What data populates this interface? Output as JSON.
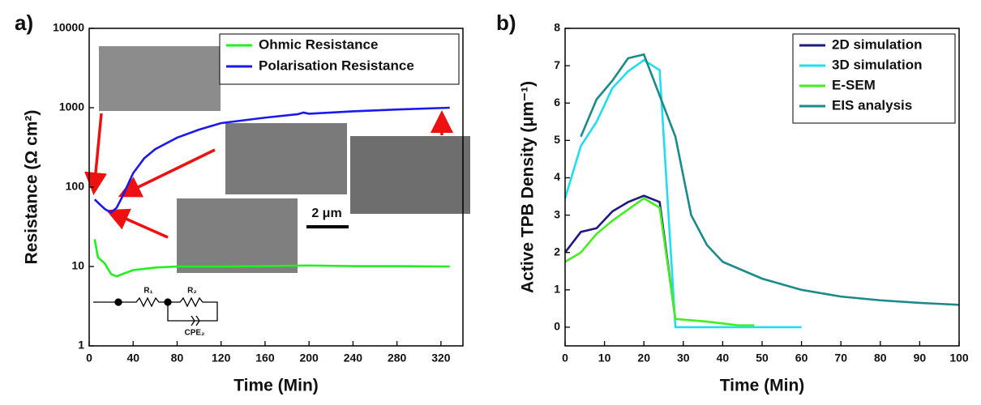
{
  "chart_data": [
    {
      "type": "line",
      "panel_label": "a)",
      "x_label": "Time (Min)",
      "y_label": "Resistance (Ω cm²)",
      "log_y": true,
      "xlim": [
        0,
        340
      ],
      "xticks": [
        0,
        40,
        80,
        120,
        160,
        200,
        240,
        280,
        320
      ],
      "ylim": [
        1,
        10000
      ],
      "yticks": [
        1,
        10,
        100,
        1000,
        10000
      ],
      "legend": "upper right",
      "series": [
        {
          "name": "Ohmic Resistance",
          "color": "#22ee22",
          "x": [
            5,
            8,
            14,
            20,
            25,
            30,
            40,
            60,
            80,
            120,
            160,
            200,
            240,
            280,
            328
          ],
          "values": [
            22,
            13,
            11,
            8,
            7.5,
            8,
            9,
            9.7,
            10,
            10,
            10.1,
            10.3,
            10.1,
            10.1,
            10
          ]
        },
        {
          "name": "Polarisation Resistance",
          "color": "#1a1aee",
          "x": [
            5,
            10,
            15,
            20,
            25,
            30,
            40,
            50,
            60,
            80,
            100,
            120,
            160,
            190,
            195,
            200,
            240,
            280,
            328
          ],
          "values": [
            70,
            60,
            52,
            48,
            55,
            75,
            150,
            230,
            300,
            420,
            530,
            640,
            750,
            830,
            870,
            840,
            900,
            950,
            1000
          ]
        }
      ],
      "annotations": {
        "scale_bar": "2 μm",
        "circuit": [
          "R₁",
          "R₂",
          "CPE₂"
        ]
      }
    },
    {
      "type": "line",
      "panel_label": "b)",
      "x_label": "Time (Min)",
      "y_label": "Active TPB Density (μm⁻¹)",
      "xlim": [
        0,
        100
      ],
      "xticks": [
        0,
        10,
        20,
        30,
        40,
        50,
        60,
        70,
        80,
        90,
        100
      ],
      "ylim": [
        -0.5,
        8
      ],
      "yticks": [
        0,
        1,
        2,
        3,
        4,
        5,
        6,
        7,
        8
      ],
      "legend": "upper right",
      "series": [
        {
          "name": "2D simulation",
          "color": "#1f1a80",
          "x": [
            0,
            4,
            8,
            12,
            16,
            20,
            24,
            28
          ],
          "values": [
            2.0,
            2.55,
            2.65,
            3.1,
            3.35,
            3.52,
            3.35,
            0.2
          ]
        },
        {
          "name": "3D simulation",
          "color": "#22ddee",
          "x": [
            0,
            4,
            8,
            12,
            16,
            20,
            24,
            28,
            60
          ],
          "values": [
            3.45,
            4.85,
            5.5,
            6.4,
            6.85,
            7.15,
            6.88,
            0,
            0
          ]
        },
        {
          "name": "E-SEM",
          "color": "#44ee22",
          "x": [
            0,
            4,
            8,
            12,
            16,
            20,
            24,
            28,
            36,
            44,
            48
          ],
          "values": [
            1.75,
            2.0,
            2.5,
            2.85,
            3.15,
            3.45,
            3.2,
            0.22,
            0.15,
            0.05,
            0.05
          ]
        },
        {
          "name": "EIS analysis",
          "color": "#1a8a8a",
          "x": [
            4,
            8,
            12,
            16,
            20,
            24,
            28,
            32,
            36,
            40,
            50,
            60,
            70,
            80,
            90,
            100
          ],
          "values": [
            5.1,
            6.1,
            6.6,
            7.2,
            7.3,
            6.2,
            5.1,
            3.0,
            2.2,
            1.75,
            1.3,
            1.0,
            0.82,
            0.72,
            0.65,
            0.6
          ]
        }
      ]
    }
  ]
}
